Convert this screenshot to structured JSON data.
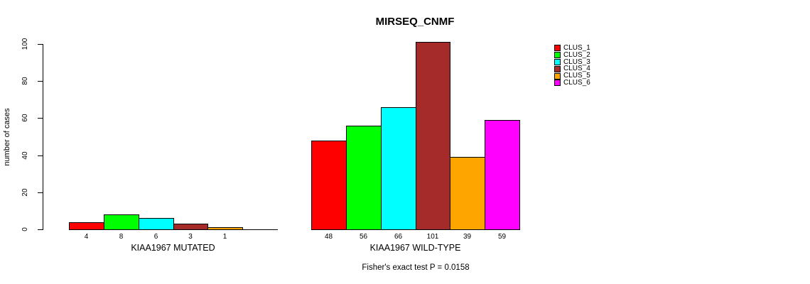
{
  "chart_data": {
    "type": "bar",
    "title": "MIRSEQ_CNMF",
    "ylabel": "number of cases",
    "ylim": [
      0,
      100
    ],
    "yticks": [
      0,
      20,
      40,
      60,
      80,
      100
    ],
    "grid": false,
    "annotation": "Fisher's exact test P = 0.0158",
    "series_colors": [
      "#FF0000",
      "#00FF00",
      "#00FFFF",
      "#A52A2A",
      "#FFA500",
      "#FF00FF"
    ],
    "legend": {
      "position": "right",
      "entries": [
        {
          "label": "CLUS_1",
          "color": "#FF0000"
        },
        {
          "label": "CLUS_2",
          "color": "#00FF00"
        },
        {
          "label": "CLUS_3",
          "color": "#00FFFF"
        },
        {
          "label": "CLUS_4",
          "color": "#A52A2A"
        },
        {
          "label": "CLUS_5",
          "color": "#FFA500"
        },
        {
          "label": "CLUS_6",
          "color": "#FF00FF"
        }
      ]
    },
    "groups": [
      {
        "label": "KIAA1967 MUTATED",
        "values": [
          4,
          8,
          6,
          3,
          1,
          0
        ],
        "bar_labels": [
          "4",
          "8",
          "6",
          "3",
          "1",
          ""
        ]
      },
      {
        "label": "KIAA1967 WILD-TYPE",
        "values": [
          48,
          56,
          66,
          101,
          39,
          59
        ],
        "bar_labels": [
          "48",
          "56",
          "66",
          "101",
          "39",
          "59"
        ]
      }
    ]
  }
}
